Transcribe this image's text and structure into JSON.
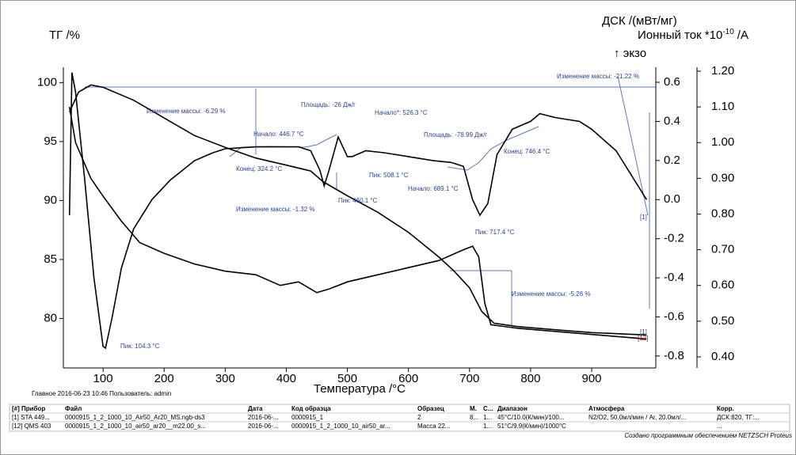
{
  "chart_data": {
    "type": "line",
    "ylabel": "ТГ /%",
    "y2label": "ДСК /(мВт/мг)",
    "y3label": "Ионный ток *10",
    "y3label_sup": "-10",
    "y3label_unit": "/А",
    "exo": "↑ экзо",
    "xlabel": "Температура /°C",
    "xlim": [
      35,
      1005
    ],
    "xticks": [
      100,
      200,
      300,
      400,
      500,
      600,
      700,
      800,
      900
    ],
    "ylim": [
      75.8,
      101.3
    ],
    "yticks": [
      80,
      85,
      90,
      95,
      100
    ],
    "y2lim": [
      -0.861,
      0.677
    ],
    "y2ticks": [
      -0.8,
      -0.6,
      -0.4,
      -0.2,
      {
        "value": 0,
        "label": "0.0"
      },
      0.2,
      0.4,
      0.6
    ],
    "y3lim": [
      0.369,
      1.211
    ],
    "y3ticks": [
      {
        "value": 0.4,
        "label": "0.40"
      },
      {
        "value": 0.5,
        "label": "0.50"
      },
      {
        "value": 0.6,
        "label": "0.60"
      },
      {
        "value": 0.7,
        "label": "0.70"
      },
      {
        "value": 0.8,
        "label": "0.80"
      },
      {
        "value": 0.9,
        "label": "0.90"
      },
      {
        "value": 1.0,
        "label": "1.00"
      },
      {
        "value": 1.1,
        "label": "1.10"
      },
      {
        "value": 1.2,
        "label": "1.20"
      }
    ],
    "series": [
      {
        "axis": "y",
        "color": "#000000",
        "x": [
          45,
          60,
          80,
          100,
          150,
          200,
          250,
          300,
          350,
          400,
          440,
          460,
          480,
          500,
          550,
          600,
          650,
          675,
          700,
          720,
          740,
          780,
          850,
          900,
          990
        ],
        "values": [
          97.5,
          99.2,
          99.8,
          99.6,
          98.5,
          97.0,
          95.5,
          94.5,
          93.6,
          93.0,
          92.5,
          91.6,
          91.0,
          90.4,
          89.0,
          87.3,
          85.2,
          84.0,
          82.6,
          80.6,
          79.6,
          79.3,
          79.0,
          78.8,
          78.6
        ]
      },
      {
        "axis": "y2",
        "color": "#000000",
        "x": [
          45,
          49,
          55,
          70,
          85,
          100,
          104,
          115,
          130,
          150,
          180,
          210,
          250,
          280,
          300,
          350,
          420,
          440,
          455,
          462,
          470,
          485,
          500,
          508,
          530,
          560,
          600,
          640,
          670,
          690,
          705,
          717,
          730,
          745,
          770,
          800,
          815,
          840,
          860,
          880,
          900,
          940,
          970,
          990
        ],
        "values": [
          -0.08,
          0.65,
          0.55,
          0.1,
          -0.4,
          -0.75,
          -0.76,
          -0.6,
          -0.35,
          -0.15,
          0.0,
          0.1,
          0.2,
          0.24,
          0.26,
          0.27,
          0.27,
          0.25,
          0.15,
          0.07,
          0.15,
          0.32,
          0.22,
          0.22,
          0.25,
          0.24,
          0.22,
          0.2,
          0.19,
          0.17,
          0.0,
          -0.08,
          -0.02,
          0.23,
          0.36,
          0.4,
          0.44,
          0.42,
          0.41,
          0.4,
          0.36,
          0.25,
          0.1,
          0.0
        ]
      },
      {
        "axis": "y3",
        "color": "#000000",
        "x": [
          45,
          55,
          80,
          100,
          130,
          160,
          200,
          250,
          300,
          350,
          390,
          420,
          450,
          470,
          500,
          550,
          600,
          650,
          690,
          705,
          715,
          725,
          735,
          780,
          850,
          920,
          990
        ],
        "values": [
          1.1,
          1.0,
          0.9,
          0.85,
          0.78,
          0.72,
          0.69,
          0.66,
          0.64,
          0.63,
          0.6,
          0.61,
          0.58,
          0.59,
          0.61,
          0.63,
          0.65,
          0.67,
          0.7,
          0.71,
          0.68,
          0.55,
          0.49,
          0.48,
          0.47,
          0.46,
          0.45
        ]
      }
    ],
    "annotations": [
      "Изменение массы: -6.29 %",
      "Начало: 446.7 °C",
      "Площадь: -26 Дж/г",
      "Начало*: 526.3 °C",
      "Конец: 324.2 °C",
      "Пик: 460.1 °C",
      "Изменение массы: -1.32 %",
      "Пик: 508.1 °C",
      "Площадь: -78.99 Дж/г",
      "Конец: 746.4 °C",
      "Начало: 689.1 °C",
      "Пик: 717.4 °C",
      "Изменение массы: -21.22 %",
      "Изменение массы: -5.26 %",
      "Пик: 104.3 °C",
      "[1]",
      "[1]",
      "[12]"
    ]
  },
  "footer": "Главное    2016-06-23 10:46    Пользователь: admin",
  "table": {
    "header": [
      "[#] Прибор",
      "Файл",
      "Дата",
      "Код образца",
      "Образец",
      "М.",
      "С...",
      "Диапазон",
      "Атмосфера",
      "Корр."
    ],
    "rows": [
      [
        "[1] STA 449...",
        "0000915_1_2_1000_10_Air50_Ar20_MS.ngb-ds3",
        "2016-06-...",
        "0000915_1",
        "2",
        "8...",
        "1...",
        "45°C/10.0(К/мин)/100...",
        "N2/O2, 50.0мл/мин / Ar, 20.0мл/...",
        "ДСК:820, ТГ:..."
      ],
      [
        "[12] QMS 403",
        "0000915_1_2_1000_10_air50_ar20__m22.00_s...",
        "2016-06-...",
        "0000915_1_2_1000_10_air50_ar...",
        "Масса   22...",
        null,
        "1...",
        "51°C/9.9(К/мин)/1000°C",
        null,
        "..."
      ]
    ]
  },
  "credit": "Создано программным обеспечением NETZSCH Proteus"
}
